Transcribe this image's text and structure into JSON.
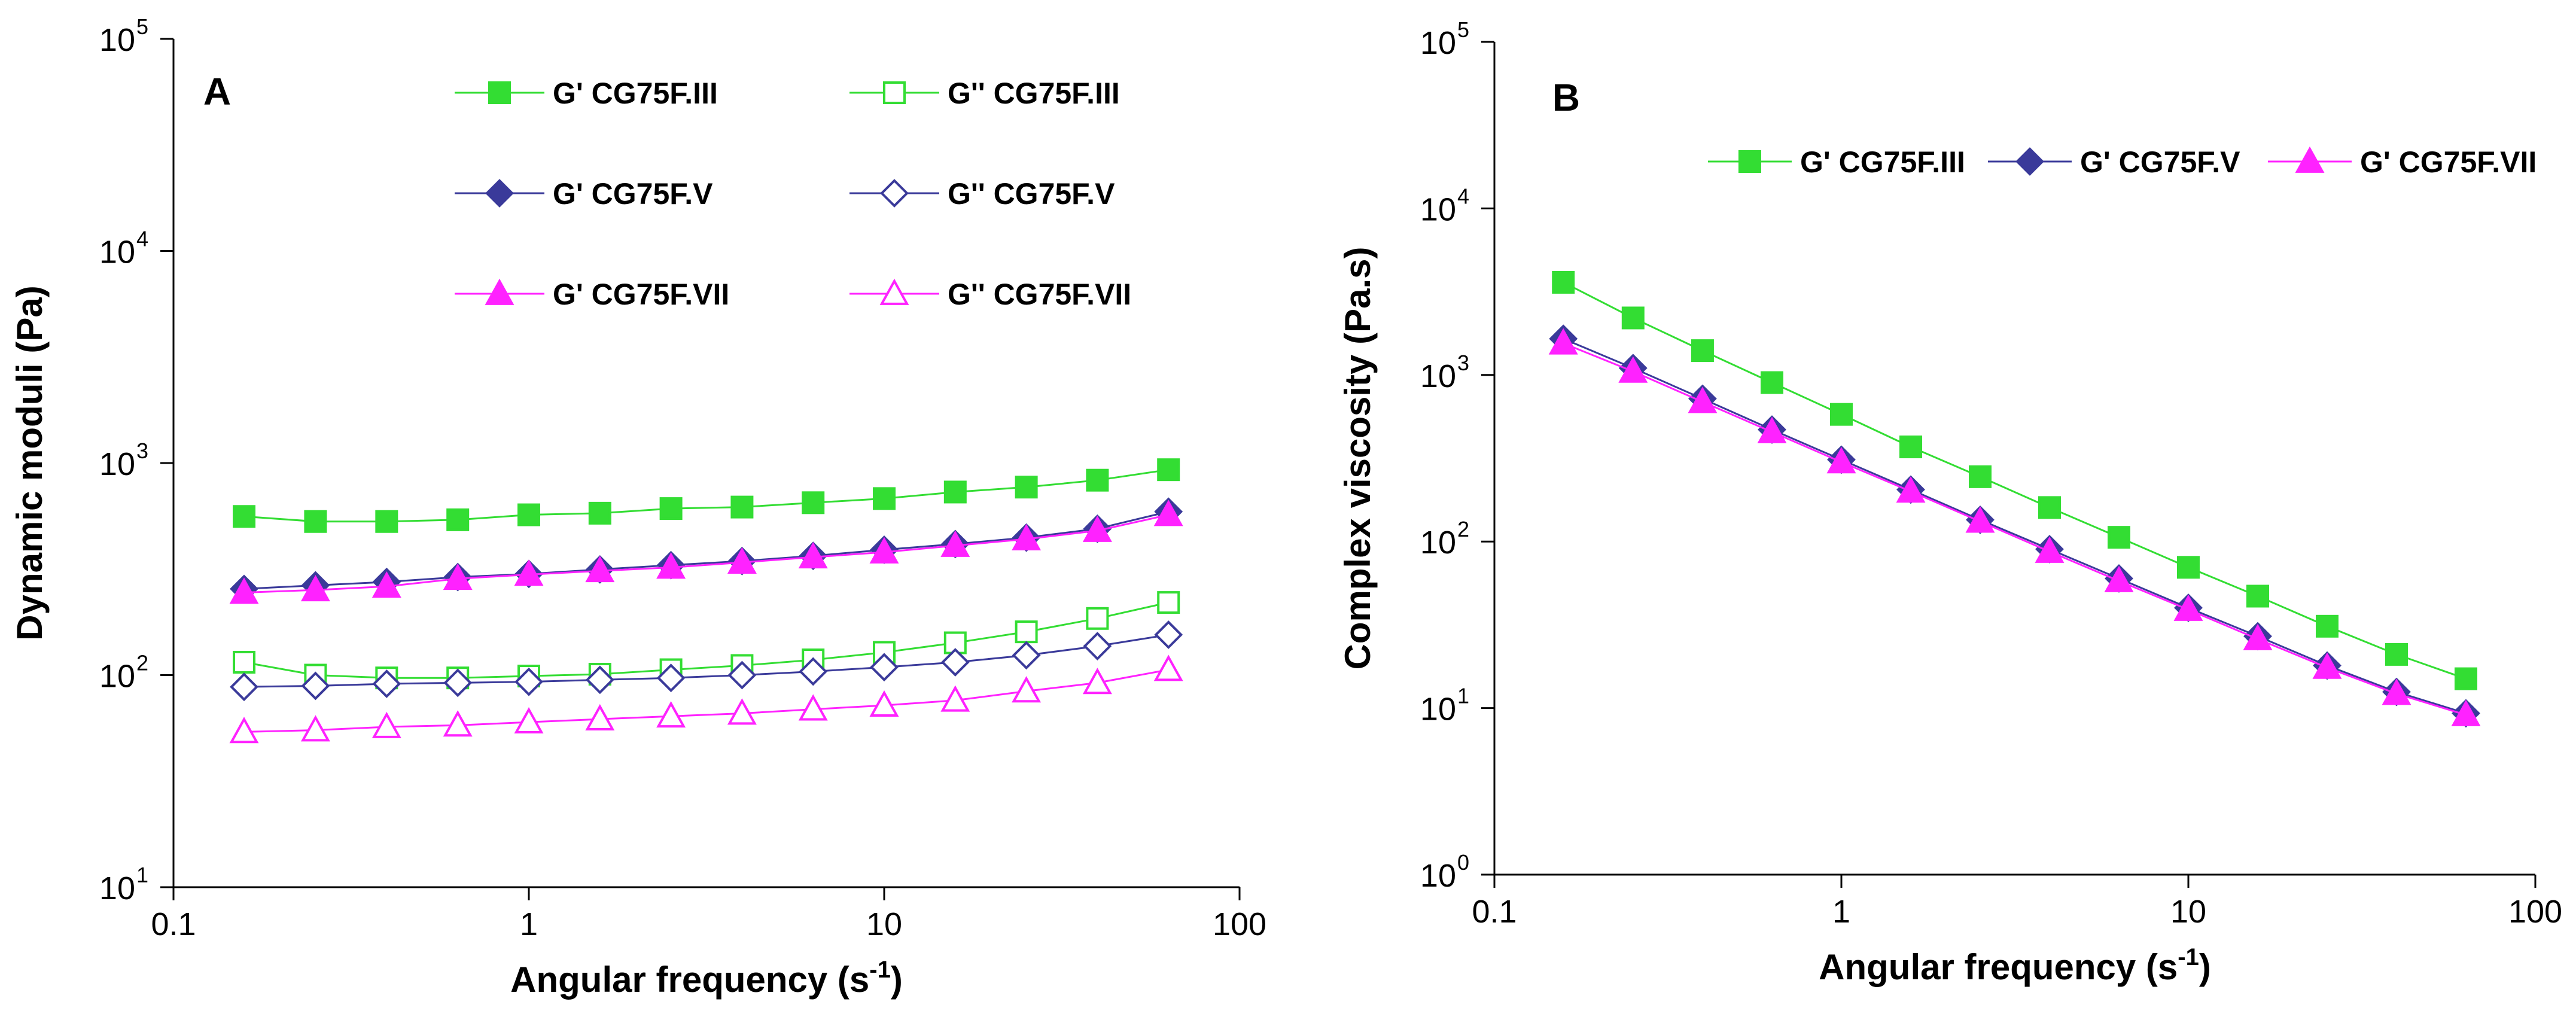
{
  "chart_data": [
    {
      "panel": "A",
      "type": "line",
      "xscale": "log",
      "yscale": "log",
      "xlabel_main": "Angular frequency (s",
      "xlabel_sup": "-1",
      "xlabel_end": ")",
      "ylabel": "Dynamic moduli (Pa)",
      "xlim": [
        0.1,
        100
      ],
      "ylim": [
        10,
        100000
      ],
      "x_ticks": [
        {
          "value": 0.1,
          "label": "0.1"
        },
        {
          "value": 1,
          "label": "1"
        },
        {
          "value": 10,
          "label": "10"
        },
        {
          "value": 100,
          "label": "100"
        }
      ],
      "y_ticks": [
        {
          "value": 10,
          "base": "10",
          "exp": "1"
        },
        {
          "value": 100,
          "base": "10",
          "exp": "2"
        },
        {
          "value": 1000,
          "base": "10",
          "exp": "3"
        },
        {
          "value": 10000,
          "base": "10",
          "exp": "4"
        },
        {
          "value": 100000,
          "base": "10",
          "exp": "5"
        }
      ],
      "legend_columns": 2,
      "x": [
        0.158,
        0.251,
        0.398,
        0.631,
        1.0,
        1.585,
        2.512,
        3.981,
        6.31,
        10.0,
        15.85,
        25.12,
        39.81,
        63.1
      ],
      "series": [
        {
          "name": "G' CG75F.III",
          "color": "#33dd33",
          "marker": "square",
          "filled": true,
          "values": [
            560,
            530,
            530,
            540,
            570,
            580,
            610,
            620,
            650,
            680,
            730,
            770,
            830,
            930
          ]
        },
        {
          "name": "G'' CG75F.III",
          "color": "#33dd33",
          "marker": "square",
          "filled": false,
          "values": [
            115,
            100,
            97,
            97,
            99,
            101,
            106,
            111,
            118,
            128,
            142,
            160,
            185,
            220
          ]
        },
        {
          "name": "G' CG75F.V",
          "color": "#3a3a9a",
          "marker": "diamond",
          "filled": true,
          "values": [
            255,
            265,
            275,
            290,
            300,
            315,
            330,
            345,
            365,
            390,
            415,
            445,
            490,
            590
          ]
        },
        {
          "name": "G'' CG75F.V",
          "color": "#3a3a9a",
          "marker": "diamond",
          "filled": false,
          "values": [
            88,
            89,
            91,
            92,
            93,
            95,
            97,
            100,
            104,
            109,
            115,
            124,
            137,
            155
          ]
        },
        {
          "name": "G' CG75F.VII",
          "color": "#ff22ff",
          "marker": "triangle",
          "filled": true,
          "values": [
            245,
            252,
            262,
            285,
            298,
            310,
            322,
            340,
            360,
            380,
            408,
            438,
            480,
            570
          ]
        },
        {
          "name": "G'' CG75F.VII",
          "color": "#ff22ff",
          "marker": "triangle",
          "filled": false,
          "values": [
            54,
            55,
            57,
            58,
            60,
            62,
            64,
            66,
            69,
            72,
            76,
            84,
            92,
            106
          ]
        }
      ]
    },
    {
      "panel": "B",
      "type": "line",
      "xscale": "log",
      "yscale": "log",
      "xlabel_main": "Angular frequency (s",
      "xlabel_sup": "-1",
      "xlabel_end": ")",
      "ylabel": "Complex viscosity (Pa.s)",
      "xlim": [
        0.1,
        100
      ],
      "ylim": [
        1,
        100000
      ],
      "x_ticks": [
        {
          "value": 0.1,
          "label": "0.1"
        },
        {
          "value": 1,
          "label": "1"
        },
        {
          "value": 10,
          "label": "10"
        },
        {
          "value": 100,
          "label": "100"
        }
      ],
      "y_ticks": [
        {
          "value": 1,
          "base": "10",
          "exp": "0"
        },
        {
          "value": 10,
          "base": "10",
          "exp": "1"
        },
        {
          "value": 100,
          "base": "10",
          "exp": "2"
        },
        {
          "value": 1000,
          "base": "10",
          "exp": "3"
        },
        {
          "value": 10000,
          "base": "10",
          "exp": "4"
        },
        {
          "value": 100000,
          "base": "10",
          "exp": "5"
        }
      ],
      "legend_columns": 3,
      "x": [
        0.158,
        0.251,
        0.398,
        0.631,
        1.0,
        1.585,
        2.512,
        3.981,
        6.31,
        10.0,
        15.85,
        25.12,
        39.81,
        63.1
      ],
      "series": [
        {
          "name": "G' CG75F.III",
          "color": "#33dd33",
          "marker": "square",
          "filled": true,
          "values": [
            3600,
            2200,
            1400,
            900,
            580,
            370,
            245,
            160,
            106,
            70,
            47,
            31,
            21,
            15
          ]
        },
        {
          "name": "G' CG75F.V",
          "color": "#3a3a9a",
          "marker": "diamond",
          "filled": true,
          "values": [
            1650,
            1100,
            720,
            470,
            310,
            205,
            135,
            90,
            60,
            40,
            27,
            18,
            12.5,
            9.3
          ]
        },
        {
          "name": "G' CG75F.VII",
          "color": "#ff22ff",
          "marker": "triangle",
          "filled": true,
          "values": [
            1550,
            1050,
            690,
            455,
            300,
            200,
            132,
            87,
            58,
            39,
            26,
            17.5,
            12.2,
            9.1
          ]
        }
      ]
    }
  ]
}
